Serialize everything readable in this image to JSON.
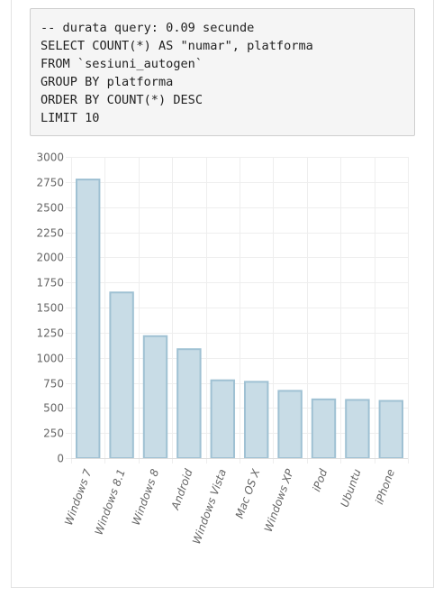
{
  "query": {
    "lines": [
      "-- durata query: 0.09 secunde",
      "SELECT COUNT(*) AS \"numar\", platforma",
      "FROM `sesiuni_autogen`",
      "GROUP BY platforma",
      "ORDER BY COUNT(*) DESC",
      "LIMIT 10"
    ]
  },
  "chart_data": {
    "type": "bar",
    "title": "",
    "xlabel": "",
    "ylabel": "",
    "categories": [
      "Windows 7",
      "Windows 8.1",
      "Windows 8",
      "Android",
      "Windows Vista",
      "Mac OS X",
      "Windows XP",
      "iPod",
      "Ubuntu",
      "iPhone"
    ],
    "values": [
      2775,
      1650,
      1215,
      1085,
      775,
      760,
      670,
      585,
      580,
      570
    ],
    "ylim": [
      0,
      3000
    ],
    "yticks": [
      0,
      250,
      500,
      750,
      1000,
      1250,
      1500,
      1750,
      2000,
      2250,
      2500,
      2750,
      3000
    ],
    "grid": true,
    "legend": "none",
    "colors": {
      "bar_fill": "#c8dce6",
      "bar_stroke": "#9fc1d3",
      "grid": "#eeeeee",
      "axis_text": "#666666"
    }
  }
}
